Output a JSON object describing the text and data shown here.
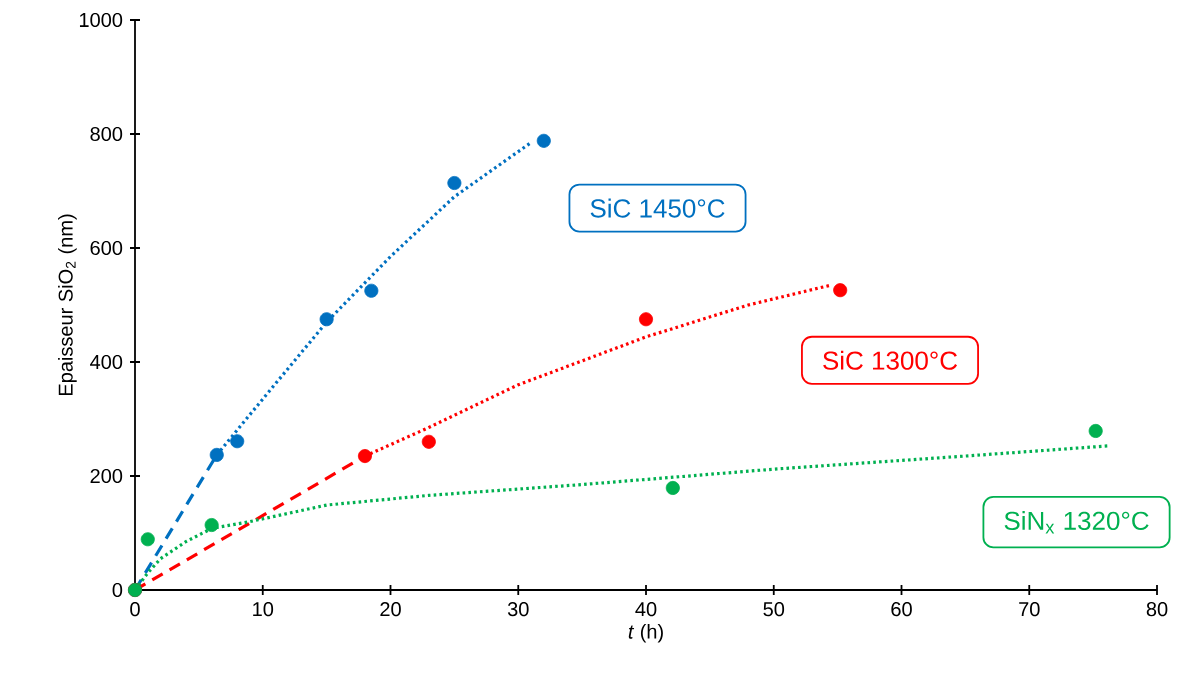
{
  "chart_data": {
    "type": "scatter",
    "xlabel": "*t* (h)",
    "ylabel": "Epaisseur SiO$_{2}$ (nm)",
    "xlim": [
      0,
      80
    ],
    "ylim": [
      0,
      1000
    ],
    "xticks": [
      0,
      10,
      20,
      30,
      40,
      50,
      60,
      70,
      80
    ],
    "yticks": [
      0,
      200,
      400,
      600,
      800,
      1000
    ],
    "grid": false,
    "legend": "right",
    "series": [
      {
        "name": "SiC 1450°C",
        "marker": "circle",
        "color": "#0070c0",
        "x": [
          0,
          6.4,
          8,
          15,
          18.5,
          25,
          32
        ],
        "values": [
          0,
          237,
          261,
          475,
          525,
          714,
          788
        ]
      },
      {
        "name": "SiC 1300°C",
        "marker": "circle",
        "color": "#ff0000",
        "x": [
          0,
          18,
          23,
          40,
          55.2
        ],
        "values": [
          0,
          235,
          260,
          475,
          526
        ]
      },
      {
        "name": "SiN$_{x}$ 1320°C",
        "marker": "circle",
        "color": "#00b050",
        "x": [
          0,
          1,
          6,
          42.1,
          75.2
        ],
        "values": [
          0,
          89,
          114,
          179,
          279
        ]
      },
      {
        "type": "line",
        "marker": "none",
        "line_style": "dashed",
        "color": "#0070c0",
        "x": [
          0,
          6.4
        ],
        "values": [
          0,
          237
        ]
      },
      {
        "type": "line",
        "marker": "none",
        "line_style": "dotted",
        "color": "#0070c0",
        "x": [
          6.4,
          10,
          15,
          20,
          25,
          31
        ],
        "values": [
          237,
          335,
          470,
          585,
          690,
          785
        ]
      },
      {
        "type": "line",
        "marker": "none",
        "line_style": "dashed",
        "color": "#ff0000",
        "x": [
          0,
          18
        ],
        "values": [
          0,
          235
        ]
      },
      {
        "type": "line",
        "marker": "none",
        "line_style": "dotted",
        "color": "#ff0000",
        "x": [
          18,
          22.9,
          30,
          40,
          48,
          54.5
        ],
        "values": [
          235,
          284,
          360,
          444,
          500,
          535
        ]
      },
      {
        "type": "line",
        "marker": "none",
        "line_style": "dotted",
        "color": "#00b050",
        "x": [
          0,
          1,
          2,
          4,
          6,
          9,
          15,
          23,
          35,
          50,
          65,
          76.3
        ],
        "values": [
          0,
          30,
          55,
          85,
          108,
          120,
          149,
          166,
          185,
          212,
          235,
          253
        ]
      }
    ]
  }
}
